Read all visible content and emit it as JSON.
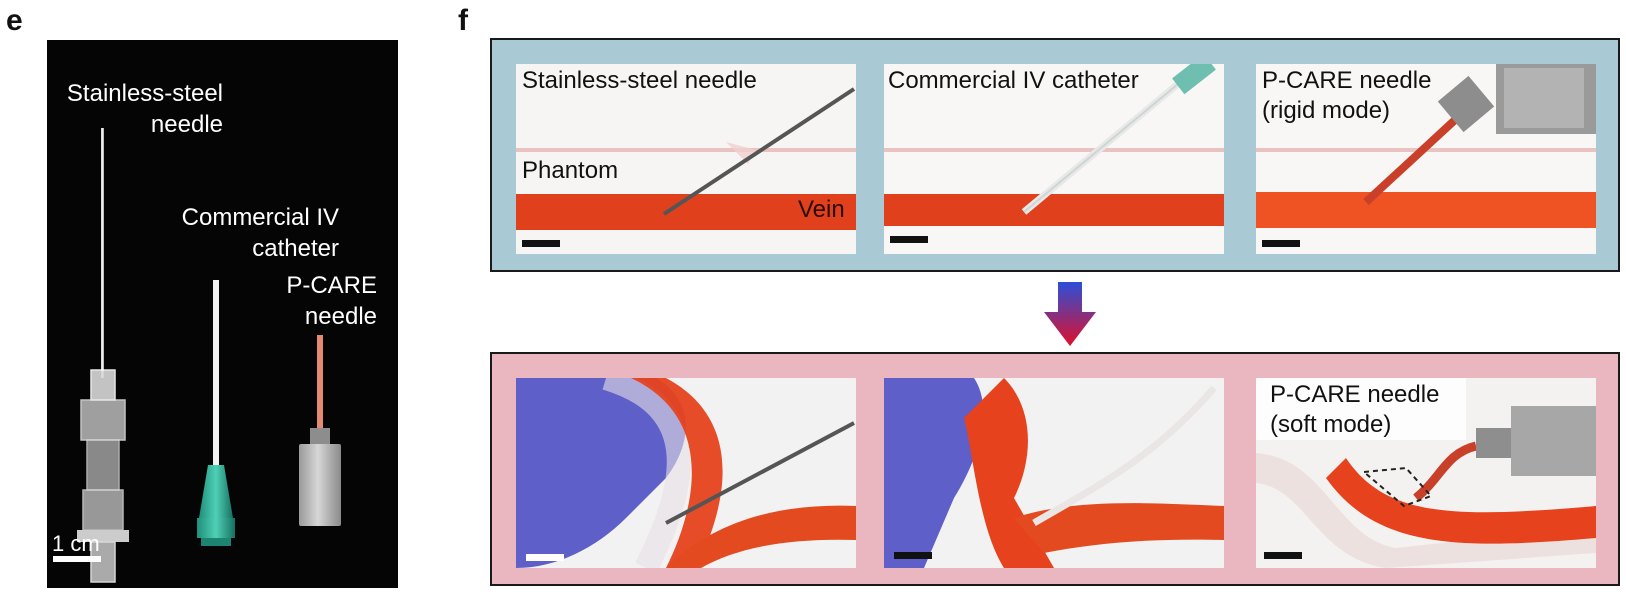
{
  "panel_e": {
    "letter": "e",
    "labels": {
      "steel_line1": "Stainless-steel",
      "steel_line2": "needle",
      "iv_line1": "Commercial IV",
      "iv_line2": "catheter",
      "pcare_line1": "P-CARE",
      "pcare_line2": "needle",
      "scale": "1 cm"
    }
  },
  "panel_f": {
    "letter": "f",
    "top_row": {
      "photo1_title": "Stainless-steel needle",
      "photo1_phantom": "Phantom",
      "photo1_vein": "Vein",
      "photo2_title": "Commercial IV catheter",
      "photo3_line1": "P-CARE needle",
      "photo3_line2": "(rigid mode)"
    },
    "bottom_row": {
      "photo3_line1": "P-CARE needle",
      "photo3_line2": "(soft mode)"
    }
  },
  "colors": {
    "top_box_fill": "#a9c9d4",
    "bottom_box_fill": "#eab7c0",
    "vein_red": "#e0401c",
    "arrow_top": "#2b4fd8",
    "arrow_bottom": "#e0102a",
    "glove_blue": "#5e5fc8"
  }
}
